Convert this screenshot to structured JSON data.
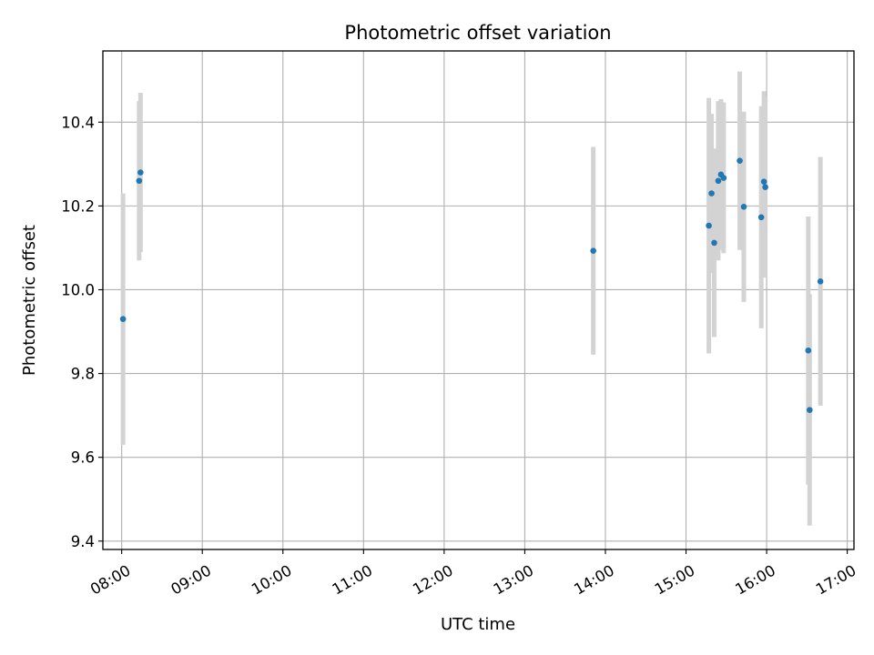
{
  "chart_data": {
    "type": "scatter",
    "title": "Photometric offset variation",
    "xlabel": "UTC time",
    "ylabel": "Photometric offset",
    "x_unit": "UTC hour of day",
    "xlim": [
      "07:46",
      "17:05"
    ],
    "ylim": [
      9.38,
      10.57
    ],
    "x_ticks": [
      "08:00",
      "09:00",
      "10:00",
      "11:00",
      "12:00",
      "13:00",
      "14:00",
      "15:00",
      "16:00",
      "17:00"
    ],
    "y_ticks": [
      "9.4",
      "9.6",
      "9.8",
      "10.0",
      "10.2",
      "10.4"
    ],
    "grid": true,
    "legend": "none",
    "colors": {
      "points": "#1f77b4",
      "errorbars": "#d3d3d3",
      "grid": "#b0b0b0",
      "axes": "#000000"
    },
    "points": [
      {
        "x": "08:01",
        "y": 9.93,
        "err": 0.3
      },
      {
        "x": "08:13",
        "y": 10.26,
        "err": 0.19
      },
      {
        "x": "08:14",
        "y": 10.28,
        "err": 0.19
      },
      {
        "x": "13:51",
        "y": 10.093,
        "err": 0.248
      },
      {
        "x": "15:17",
        "y": 10.153,
        "err": 0.305
      },
      {
        "x": "15:19",
        "y": 10.23,
        "err": 0.19
      },
      {
        "x": "15:21",
        "y": 10.112,
        "err": 0.225
      },
      {
        "x": "15:24",
        "y": 10.26,
        "err": 0.19
      },
      {
        "x": "15:26",
        "y": 10.275,
        "err": 0.18
      },
      {
        "x": "15:28",
        "y": 10.267,
        "err": 0.18
      },
      {
        "x": "15:40",
        "y": 10.308,
        "err": 0.213
      },
      {
        "x": "15:43",
        "y": 10.198,
        "err": 0.227
      },
      {
        "x": "15:56",
        "y": 10.173,
        "err": 0.265
      },
      {
        "x": "15:58",
        "y": 10.258,
        "err": 0.216
      },
      {
        "x": "15:59",
        "y": 10.245,
        "err": 0.216
      },
      {
        "x": "16:31",
        "y": 9.855,
        "err": 0.32
      },
      {
        "x": "16:32",
        "y": 9.713,
        "err": 0.276
      },
      {
        "x": "16:40",
        "y": 10.02,
        "err": 0.297
      }
    ]
  }
}
